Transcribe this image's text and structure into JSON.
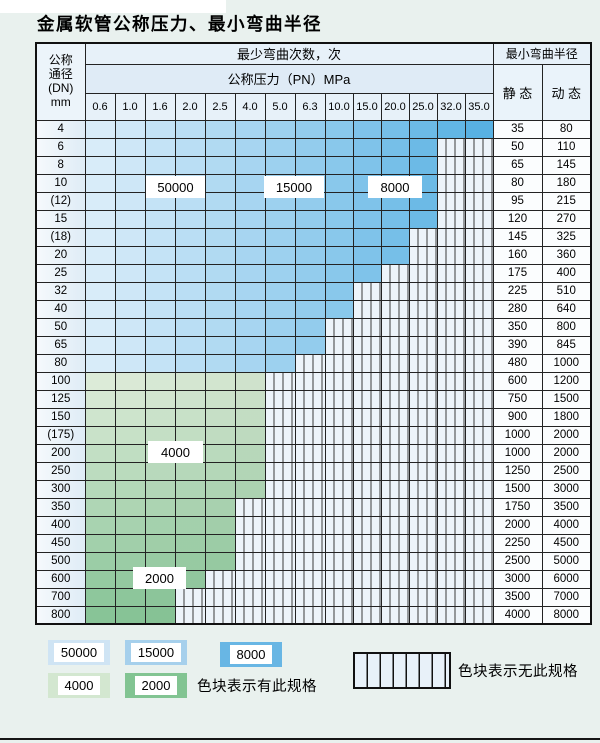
{
  "page": {
    "title": "金属软管公称压力、最小弯曲半径"
  },
  "table": {
    "corner": {
      "line1": "公称",
      "line2": "通径",
      "line3": "(DN)",
      "line4": "mm"
    },
    "bend_times_header": "最少弯曲次数，次",
    "pn_header": "公称压力（PN）MPa",
    "radius_header": "最小弯曲半径",
    "static_label": "静 态",
    "dynamic_label": "动 态",
    "pn_columns": [
      "0.6",
      "1.0",
      "1.6",
      "2.0",
      "2.5",
      "4.0",
      "5.0",
      "6.3",
      "10.0",
      "15.0",
      "20.0",
      "25.0",
      "32.0",
      "35.0"
    ],
    "rows": [
      {
        "dn": "4",
        "zone": "blue",
        "colored_cols": 14,
        "max_pn": "35.0",
        "static": "35",
        "dynamic": "80"
      },
      {
        "dn": "6",
        "zone": "blue",
        "colored_cols": 12,
        "max_pn": "25.0",
        "static": "50",
        "dynamic": "110"
      },
      {
        "dn": "8",
        "zone": "blue",
        "colored_cols": 12,
        "max_pn": "25.0",
        "static": "65",
        "dynamic": "145"
      },
      {
        "dn": "10",
        "zone": "blue",
        "colored_cols": 12,
        "max_pn": "25.0",
        "static": "80",
        "dynamic": "180"
      },
      {
        "dn": "(12)",
        "zone": "blue",
        "colored_cols": 12,
        "max_pn": "25.0",
        "static": "95",
        "dynamic": "215"
      },
      {
        "dn": "15",
        "zone": "blue",
        "colored_cols": 12,
        "max_pn": "25.0",
        "static": "120",
        "dynamic": "270"
      },
      {
        "dn": "(18)",
        "zone": "blue",
        "colored_cols": 11,
        "max_pn": "20.0",
        "static": "145",
        "dynamic": "325"
      },
      {
        "dn": "20",
        "zone": "blue",
        "colored_cols": 11,
        "max_pn": "20.0",
        "static": "160",
        "dynamic": "360"
      },
      {
        "dn": "25",
        "zone": "blue",
        "colored_cols": 10,
        "max_pn": "15.0",
        "static": "175",
        "dynamic": "400"
      },
      {
        "dn": "32",
        "zone": "blue",
        "colored_cols": 9,
        "max_pn": "10.0",
        "static": "225",
        "dynamic": "510"
      },
      {
        "dn": "40",
        "zone": "blue",
        "colored_cols": 9,
        "max_pn": "10.0",
        "static": "280",
        "dynamic": "640"
      },
      {
        "dn": "50",
        "zone": "blue",
        "colored_cols": 8,
        "max_pn": "6.3",
        "static": "350",
        "dynamic": "800"
      },
      {
        "dn": "65",
        "zone": "blue",
        "colored_cols": 8,
        "max_pn": "6.3",
        "static": "390",
        "dynamic": "845"
      },
      {
        "dn": "80",
        "zone": "blue",
        "colored_cols": 7,
        "max_pn": "5.0",
        "static": "480",
        "dynamic": "1000"
      },
      {
        "dn": "100",
        "zone": "green",
        "colored_cols": 6,
        "max_pn": "4.0",
        "static": "600",
        "dynamic": "1200"
      },
      {
        "dn": "125",
        "zone": "green",
        "colored_cols": 6,
        "max_pn": "4.0",
        "static": "750",
        "dynamic": "1500"
      },
      {
        "dn": "150",
        "zone": "green",
        "colored_cols": 6,
        "max_pn": "4.0",
        "static": "900",
        "dynamic": "1800"
      },
      {
        "dn": "(175)",
        "zone": "green",
        "colored_cols": 6,
        "max_pn": "4.0",
        "static": "1000",
        "dynamic": "2000"
      },
      {
        "dn": "200",
        "zone": "green",
        "colored_cols": 6,
        "max_pn": "4.0",
        "static": "1000",
        "dynamic": "2000"
      },
      {
        "dn": "250",
        "zone": "green",
        "colored_cols": 6,
        "max_pn": "4.0",
        "static": "1250",
        "dynamic": "2500"
      },
      {
        "dn": "300",
        "zone": "green",
        "colored_cols": 6,
        "max_pn": "4.0",
        "static": "1500",
        "dynamic": "3000"
      },
      {
        "dn": "350",
        "zone": "green",
        "colored_cols": 5,
        "max_pn": "2.5",
        "static": "1750",
        "dynamic": "3500"
      },
      {
        "dn": "400",
        "zone": "green",
        "colored_cols": 5,
        "max_pn": "2.5",
        "static": "2000",
        "dynamic": "4000"
      },
      {
        "dn": "450",
        "zone": "green",
        "colored_cols": 5,
        "max_pn": "2.5",
        "static": "2250",
        "dynamic": "4500"
      },
      {
        "dn": "500",
        "zone": "green",
        "colored_cols": 5,
        "max_pn": "2.5",
        "static": "2500",
        "dynamic": "5000"
      },
      {
        "dn": "600",
        "zone": "green",
        "colored_cols": 4,
        "max_pn": "2.0",
        "static": "3000",
        "dynamic": "6000"
      },
      {
        "dn": "700",
        "zone": "green",
        "colored_cols": 3,
        "max_pn": "1.6",
        "static": "3500",
        "dynamic": "7000"
      },
      {
        "dn": "800",
        "zone": "green",
        "colored_cols": 3,
        "max_pn": "1.6",
        "static": "4000",
        "dynamic": "8000"
      }
    ],
    "overlay_labels": [
      {
        "text": "50000",
        "cols": "1.6–2.0",
        "rows": "10–(12)"
      },
      {
        "text": "15000",
        "cols": "5.0–6.3",
        "rows": "10–(12)"
      },
      {
        "text": "8000",
        "cols": "15.0–20.0",
        "rows": "10–(12)"
      },
      {
        "text": "4000",
        "cols": "1.6–2.0",
        "rows": "(175)–200"
      },
      {
        "text": "2000",
        "cols": "1.0–2.0",
        "rows": "500–600"
      }
    ]
  },
  "legend": {
    "available_swatches": [
      {
        "label": "50000",
        "color": "#cfe4f4"
      },
      {
        "label": "15000",
        "color": "#a6d0ec"
      },
      {
        "label": "8000",
        "color": "#68b6e4"
      },
      {
        "label": "4000",
        "color": "#d3e7d0"
      },
      {
        "label": "2000",
        "color": "#82c492"
      }
    ],
    "available_text": "色块表示有此规格",
    "unavailable_text": "色块表示无此规格",
    "colors": {
      "blue_start": "#d8ecf9",
      "blue_end": "#58b1e3",
      "green_start": "#dcebd8",
      "green_end": "#88c497"
    }
  }
}
